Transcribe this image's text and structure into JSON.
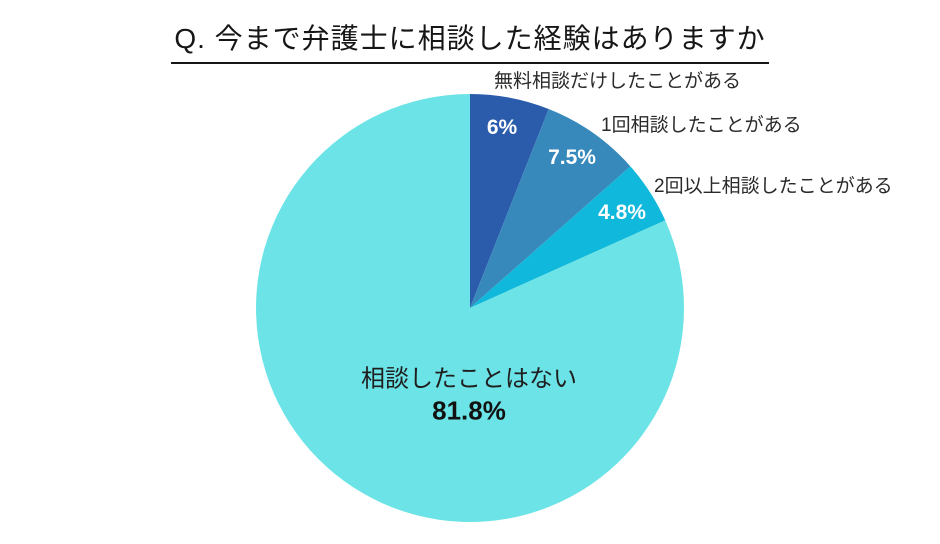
{
  "chart_data": {
    "type": "pie",
    "title": "Q. 今まで弁護士に相談した経験はありますか",
    "legend": "none",
    "start_angle_deg": 0,
    "direction": "clockwise",
    "background": "#ffffff",
    "slices": [
      {
        "label": "無料相談だけしたことがある",
        "value": 6,
        "value_label": "6%",
        "color": "#2b5cab"
      },
      {
        "label": "1回相談したことがある",
        "value": 7.5,
        "value_label": "7.5%",
        "color": "#3789bc"
      },
      {
        "label": "2回以上相談したことがある",
        "value": 4.8,
        "value_label": "4.8%",
        "color": "#10b8db"
      },
      {
        "label": "相談したことはない",
        "value": 81.8,
        "value_label": "81.8%",
        "color": "#6ce4e7"
      }
    ],
    "label_placement": "small slices labeled outside top-right, largest slice labeled inside"
  }
}
